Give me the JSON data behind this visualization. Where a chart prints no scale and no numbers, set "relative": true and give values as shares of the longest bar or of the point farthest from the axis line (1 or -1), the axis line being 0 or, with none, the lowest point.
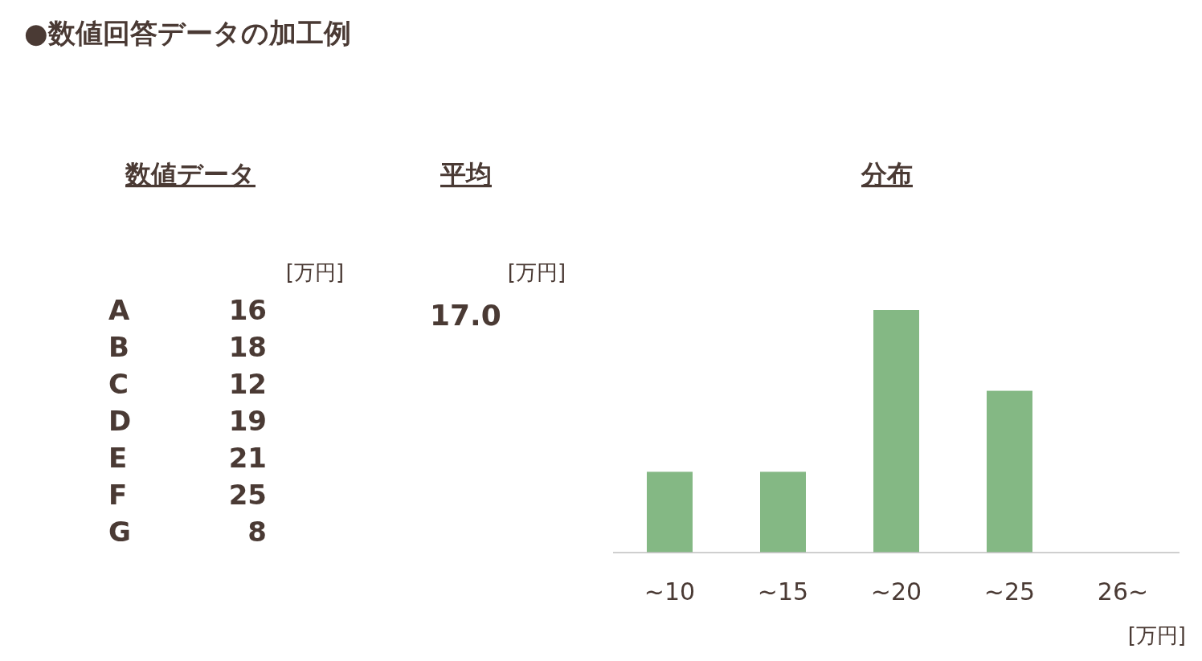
{
  "chart_data": [
    {
      "type": "other",
      "title": "●数値回答データの加工例"
    },
    {
      "type": "other",
      "title": "数値データ",
      "annotations": [
        "[万円]"
      ],
      "categories": [
        "A",
        "B",
        "C",
        "D",
        "E",
        "F",
        "G"
      ],
      "values": [
        16,
        18,
        12,
        19,
        21,
        25,
        8
      ],
      "data_labels": true
    },
    {
      "type": "other",
      "title": "平均",
      "annotations": [
        "[万円]",
        "17.0"
      ]
    },
    {
      "type": "bar",
      "title": "分布",
      "categories": [
        "~10",
        "~15",
        "~20",
        "~25",
        "26~"
      ],
      "values": [
        0.333,
        0.333,
        1,
        0.667,
        0
      ],
      "relative": true,
      "color": "#84b884",
      "xlabel": "[万円]"
    }
  ]
}
